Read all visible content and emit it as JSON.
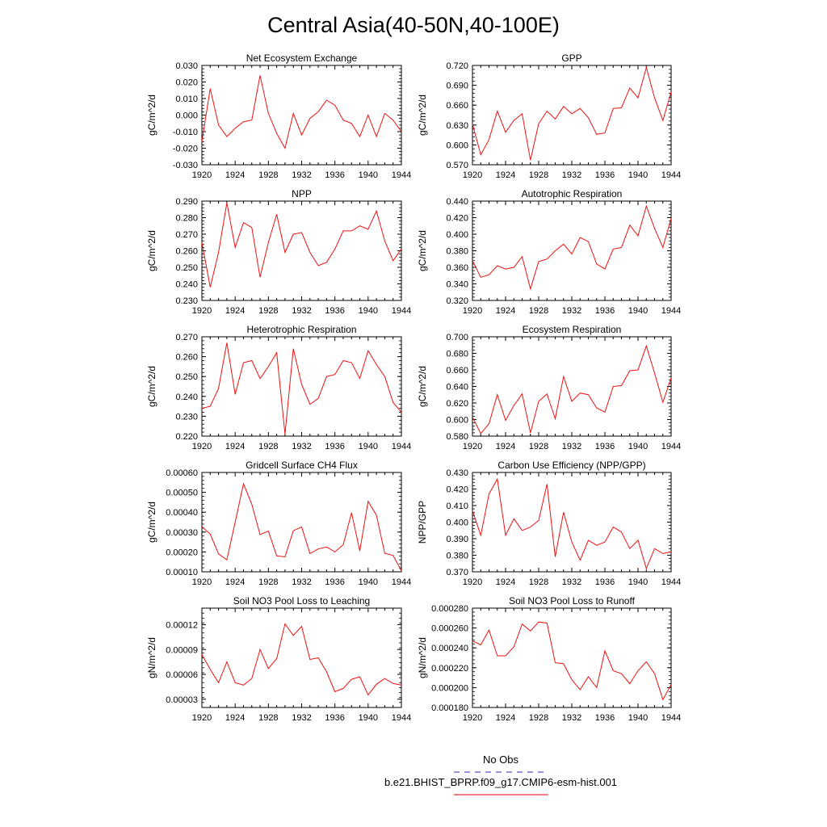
{
  "title": "Central Asia(40-50N,40-100E)",
  "legend": [
    {
      "label": "No Obs",
      "color": "#5555cc",
      "style": "dashed"
    },
    {
      "label": "b.e21.BHIST_BPRP.f09_g17.CMIP6-esm-hist.001",
      "color": "#ee3333",
      "style": "solid"
    }
  ],
  "series_color": "#ee1111",
  "chart_data": [
    {
      "type": "line",
      "title": "Net Ecosystem Exchange",
      "ylabel": "gC/m^2/d",
      "xlim": [
        1920,
        1944
      ],
      "ylim": [
        -0.03,
        0.03
      ],
      "xticks": [
        1920,
        1924,
        1928,
        1932,
        1936,
        1940,
        1944
      ],
      "yticks": [
        "-0.030",
        "-0.020",
        "-0.010",
        "0.000",
        "0.010",
        "0.020",
        "0.030"
      ],
      "ytick_values": [
        -0.03,
        -0.02,
        -0.01,
        0.0,
        0.01,
        0.02,
        0.03
      ],
      "x": [
        1920,
        1921,
        1922,
        1923,
        1924,
        1925,
        1926,
        1927,
        1928,
        1929,
        1930,
        1931,
        1932,
        1933,
        1934,
        1935,
        1936,
        1937,
        1938,
        1939,
        1940,
        1941,
        1942,
        1943,
        1944
      ],
      "series": [
        {
          "values": [
            -0.016,
            0.016,
            -0.006,
            -0.013,
            -0.008,
            -0.004,
            -0.003,
            0.024,
            0.001,
            -0.011,
            -0.02,
            0.001,
            -0.012,
            -0.002,
            0.002,
            0.009,
            0.006,
            -0.003,
            -0.005,
            -0.013,
            0.0,
            -0.013,
            0.001,
            -0.003,
            -0.01
          ]
        }
      ]
    },
    {
      "type": "line",
      "title": "GPP",
      "ylabel": "gC/m^2/d",
      "xlim": [
        1920,
        1944
      ],
      "ylim": [
        0.57,
        0.72
      ],
      "xticks": [
        1920,
        1924,
        1928,
        1932,
        1936,
        1940,
        1944
      ],
      "yticks": [
        "0.570",
        "0.600",
        "0.630",
        "0.660",
        "0.690",
        "0.720"
      ],
      "ytick_values": [
        0.57,
        0.6,
        0.63,
        0.66,
        0.69,
        0.72
      ],
      "x": [
        1920,
        1921,
        1922,
        1923,
        1924,
        1925,
        1926,
        1927,
        1928,
        1929,
        1930,
        1931,
        1932,
        1933,
        1934,
        1935,
        1936,
        1937,
        1938,
        1939,
        1940,
        1941,
        1942,
        1943,
        1944
      ],
      "series": [
        {
          "values": [
            0.632,
            0.585,
            0.608,
            0.651,
            0.619,
            0.637,
            0.647,
            0.577,
            0.632,
            0.651,
            0.639,
            0.658,
            0.647,
            0.655,
            0.641,
            0.616,
            0.618,
            0.655,
            0.656,
            0.686,
            0.671,
            0.717,
            0.671,
            0.637,
            0.68
          ]
        }
      ]
    },
    {
      "type": "line",
      "title": "NPP",
      "ylabel": "gC/m^2/d",
      "xlim": [
        1920,
        1944
      ],
      "ylim": [
        0.23,
        0.29
      ],
      "xticks": [
        1920,
        1924,
        1928,
        1932,
        1936,
        1940,
        1944
      ],
      "yticks": [
        "0.230",
        "0.240",
        "0.250",
        "0.260",
        "0.270",
        "0.280",
        "0.290"
      ],
      "ytick_values": [
        0.23,
        0.24,
        0.25,
        0.26,
        0.27,
        0.28,
        0.29
      ],
      "x": [
        1920,
        1921,
        1922,
        1923,
        1924,
        1925,
        1926,
        1927,
        1928,
        1929,
        1930,
        1931,
        1932,
        1933,
        1934,
        1935,
        1936,
        1937,
        1938,
        1939,
        1940,
        1941,
        1942,
        1943,
        1944
      ],
      "series": [
        {
          "values": [
            0.265,
            0.238,
            0.259,
            0.289,
            0.262,
            0.277,
            0.274,
            0.244,
            0.265,
            0.282,
            0.259,
            0.27,
            0.271,
            0.259,
            0.251,
            0.253,
            0.261,
            0.272,
            0.272,
            0.275,
            0.273,
            0.284,
            0.266,
            0.254,
            0.261
          ]
        }
      ]
    },
    {
      "type": "line",
      "title": "Autotrophic Respiration",
      "ylabel": "gC/m^2/d",
      "xlim": [
        1920,
        1944
      ],
      "ylim": [
        0.32,
        0.44
      ],
      "xticks": [
        1920,
        1924,
        1928,
        1932,
        1936,
        1940,
        1944
      ],
      "yticks": [
        "0.320",
        "0.340",
        "0.360",
        "0.380",
        "0.400",
        "0.420",
        "0.440"
      ],
      "ytick_values": [
        0.32,
        0.34,
        0.36,
        0.38,
        0.4,
        0.42,
        0.44
      ],
      "x": [
        1920,
        1921,
        1922,
        1923,
        1924,
        1925,
        1926,
        1927,
        1928,
        1929,
        1930,
        1931,
        1932,
        1933,
        1934,
        1935,
        1936,
        1937,
        1938,
        1939,
        1940,
        1941,
        1942,
        1943,
        1944
      ],
      "series": [
        {
          "values": [
            0.368,
            0.348,
            0.351,
            0.362,
            0.358,
            0.36,
            0.373,
            0.334,
            0.367,
            0.37,
            0.38,
            0.388,
            0.376,
            0.396,
            0.391,
            0.364,
            0.358,
            0.382,
            0.384,
            0.411,
            0.398,
            0.434,
            0.407,
            0.384,
            0.419
          ]
        }
      ]
    },
    {
      "type": "line",
      "title": "Heterotrophic Respiration",
      "ylabel": "gC/m^2/d",
      "xlim": [
        1920,
        1944
      ],
      "ylim": [
        0.22,
        0.27
      ],
      "xticks": [
        1920,
        1924,
        1928,
        1932,
        1936,
        1940,
        1944
      ],
      "yticks": [
        "0.220",
        "0.230",
        "0.240",
        "0.250",
        "0.260",
        "0.270"
      ],
      "ytick_values": [
        0.22,
        0.23,
        0.24,
        0.25,
        0.26,
        0.27
      ],
      "x": [
        1920,
        1921,
        1922,
        1923,
        1924,
        1925,
        1926,
        1927,
        1928,
        1929,
        1930,
        1931,
        1932,
        1933,
        1934,
        1935,
        1936,
        1937,
        1938,
        1939,
        1940,
        1941,
        1942,
        1943,
        1944
      ],
      "series": [
        {
          "values": [
            0.234,
            0.235,
            0.244,
            0.267,
            0.241,
            0.257,
            0.258,
            0.249,
            0.255,
            0.262,
            0.221,
            0.264,
            0.246,
            0.236,
            0.239,
            0.25,
            0.251,
            0.258,
            0.257,
            0.249,
            0.263,
            0.256,
            0.25,
            0.237,
            0.232
          ]
        }
      ]
    },
    {
      "type": "line",
      "title": "Ecosystem Respiration",
      "ylabel": "gC/m^2/d",
      "xlim": [
        1920,
        1944
      ],
      "ylim": [
        0.58,
        0.7
      ],
      "xticks": [
        1920,
        1924,
        1928,
        1932,
        1936,
        1940,
        1944
      ],
      "yticks": [
        "0.580",
        "0.600",
        "0.620",
        "0.640",
        "0.660",
        "0.680",
        "0.700"
      ],
      "ytick_values": [
        0.58,
        0.6,
        0.62,
        0.64,
        0.66,
        0.68,
        0.7
      ],
      "x": [
        1920,
        1921,
        1922,
        1923,
        1924,
        1925,
        1926,
        1927,
        1928,
        1929,
        1930,
        1931,
        1932,
        1933,
        1934,
        1935,
        1936,
        1937,
        1938,
        1939,
        1940,
        1941,
        1942,
        1943,
        1944
      ],
      "series": [
        {
          "values": [
            0.603,
            0.583,
            0.595,
            0.63,
            0.599,
            0.617,
            0.631,
            0.584,
            0.622,
            0.631,
            0.601,
            0.652,
            0.622,
            0.632,
            0.63,
            0.614,
            0.609,
            0.64,
            0.641,
            0.659,
            0.66,
            0.689,
            0.656,
            0.621,
            0.65
          ]
        }
      ]
    },
    {
      "type": "line",
      "title": "Gridcell Surface CH4 Flux",
      "ylabel": "gC/m^2/d",
      "xlim": [
        1920,
        1944
      ],
      "ylim": [
        0.0001,
        0.0006
      ],
      "xticks": [
        1920,
        1924,
        1928,
        1932,
        1936,
        1940,
        1944
      ],
      "yticks": [
        "0.00010",
        "0.00020",
        "0.00030",
        "0.00040",
        "0.00050",
        "0.00060"
      ],
      "ytick_values": [
        0.0001,
        0.0002,
        0.0003,
        0.0004,
        0.0005,
        0.0006
      ],
      "x": [
        1920,
        1921,
        1922,
        1923,
        1924,
        1925,
        1926,
        1927,
        1928,
        1929,
        1930,
        1931,
        1932,
        1933,
        1934,
        1935,
        1936,
        1937,
        1938,
        1939,
        1940,
        1941,
        1942,
        1943,
        1944
      ],
      "series": [
        {
          "values": [
            0.000327,
            0.00029,
            0.00019,
            0.00016,
            0.00035,
            0.000543,
            0.00044,
            0.000287,
            0.000305,
            0.00018,
            0.000175,
            0.000307,
            0.000325,
            0.000192,
            0.000215,
            0.000225,
            0.0002,
            0.000236,
            0.000397,
            0.000205,
            0.000455,
            0.000385,
            0.000193,
            0.000182,
            0.000105
          ]
        }
      ]
    },
    {
      "type": "line",
      "title": "Carbon Use Efficiency (NPP/GPP)",
      "ylabel": "NPP/GPP",
      "xlim": [
        1920,
        1944
      ],
      "ylim": [
        0.37,
        0.43
      ],
      "xticks": [
        1920,
        1924,
        1928,
        1932,
        1936,
        1940,
        1944
      ],
      "yticks": [
        "0.370",
        "0.380",
        "0.390",
        "0.400",
        "0.410",
        "0.420",
        "0.430"
      ],
      "ytick_values": [
        0.37,
        0.38,
        0.39,
        0.4,
        0.41,
        0.42,
        0.43
      ],
      "x": [
        1920,
        1921,
        1922,
        1923,
        1924,
        1925,
        1926,
        1927,
        1928,
        1929,
        1930,
        1931,
        1932,
        1933,
        1934,
        1935,
        1936,
        1937,
        1938,
        1939,
        1940,
        1941,
        1942,
        1943,
        1944
      ],
      "series": [
        {
          "values": [
            0.407,
            0.392,
            0.417,
            0.426,
            0.392,
            0.402,
            0.395,
            0.397,
            0.401,
            0.423,
            0.379,
            0.406,
            0.388,
            0.377,
            0.389,
            0.386,
            0.388,
            0.397,
            0.394,
            0.384,
            0.389,
            0.372,
            0.384,
            0.381,
            0.382
          ]
        }
      ]
    },
    {
      "type": "line",
      "title": "Soil NO3 Pool Loss to Leaching",
      "ylabel": "gN/m^2/d",
      "xlim": [
        1920,
        1944
      ],
      "ylim": [
        2e-05,
        0.00014
      ],
      "xticks": [
        1920,
        1924,
        1928,
        1932,
        1936,
        1940,
        1944
      ],
      "yticks": [
        "0.00003",
        "0.00006",
        "0.00009",
        "0.00012"
      ],
      "ytick_values": [
        3e-05,
        6e-05,
        9e-05,
        0.00012
      ],
      "x": [
        1920,
        1921,
        1922,
        1923,
        1924,
        1925,
        1926,
        1927,
        1928,
        1929,
        1930,
        1931,
        1932,
        1933,
        1934,
        1935,
        1936,
        1937,
        1938,
        1939,
        1940,
        1941,
        1942,
        1943,
        1944
      ],
      "series": [
        {
          "values": [
            8.4e-05,
            6.6e-05,
            5e-05,
            7.5e-05,
            5e-05,
            4.7e-05,
            5.5e-05,
            9e-05,
            6.7e-05,
            7.9e-05,
            0.000121,
            0.000107,
            0.000118,
            7.8e-05,
            8e-05,
            6.3e-05,
            3.9e-05,
            4.3e-05,
            5.4e-05,
            5.7e-05,
            3.5e-05,
            4.8e-05,
            5.5e-05,
            4.9e-05,
            4.7e-05
          ]
        }
      ]
    },
    {
      "type": "line",
      "title": "Soil NO3 Pool Loss to Runoff",
      "ylabel": "gN/m^2/d",
      "xlim": [
        1920,
        1944
      ],
      "ylim": [
        0.00018,
        0.00028
      ],
      "xticks": [
        1920,
        1924,
        1928,
        1932,
        1936,
        1940,
        1944
      ],
      "yticks": [
        "0.000180",
        "0.000200",
        "0.000220",
        "0.000240",
        "0.000260",
        "0.000280"
      ],
      "ytick_values": [
        0.00018,
        0.0002,
        0.00022,
        0.00024,
        0.00026,
        0.00028
      ],
      "x": [
        1920,
        1921,
        1922,
        1923,
        1924,
        1925,
        1926,
        1927,
        1928,
        1929,
        1930,
        1931,
        1932,
        1933,
        1934,
        1935,
        1936,
        1937,
        1938,
        1939,
        1940,
        1941,
        1942,
        1943,
        1944
      ],
      "series": [
        {
          "values": [
            0.000247,
            0.000243,
            0.000258,
            0.000232,
            0.000232,
            0.000241,
            0.000264,
            0.000257,
            0.000266,
            0.000265,
            0.000225,
            0.000224,
            0.000208,
            0.000198,
            0.000211,
            0.0002,
            0.000237,
            0.000217,
            0.000214,
            0.000204,
            0.000217,
            0.000226,
            0.000214,
            0.000188,
            0.000203
          ]
        }
      ]
    }
  ]
}
